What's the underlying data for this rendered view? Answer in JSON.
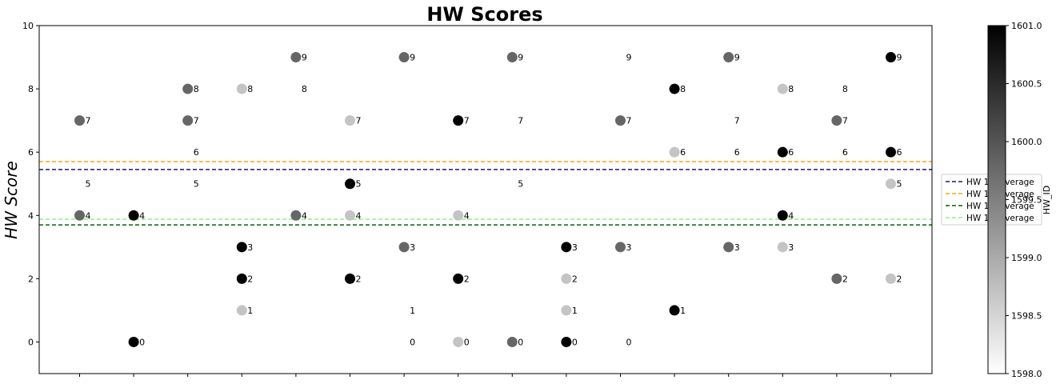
{
  "chart_data": {
    "type": "scatter",
    "title": "HW Scores",
    "xlabel": "",
    "ylabel": "HW Score",
    "ylim": [
      -1,
      10
    ],
    "yticks": [
      0,
      2,
      4,
      6,
      8,
      10
    ],
    "xticks_count": 16,
    "x_tick_labels_visible": false,
    "grid": false,
    "colorbar": {
      "label": "HW_ID",
      "range": [
        1598.0,
        1601.0
      ],
      "ticks": [
        "1598.0",
        "1598.5",
        "1599.0",
        "1599.5",
        "1600.0",
        "1600.5",
        "1601.0"
      ],
      "colormap": "greys"
    },
    "legend": {
      "placement": "right",
      "entries": [
        {
          "label": "HW 1... Average",
          "color": "#191970",
          "style": "dashed",
          "y": 5.45
        },
        {
          "label": "HW 1... Average",
          "color": "#ffa500",
          "style": "dashed",
          "y": 5.7
        },
        {
          "label": "HW 1... Average",
          "color": "#006400",
          "style": "dashed",
          "y": 3.7
        },
        {
          "label": "HW 1... Average",
          "color": "#90ee90",
          "style": "dashed",
          "y": 3.88
        }
      ]
    },
    "point_label_note": "each point is annotated with its score value",
    "series": [
      {
        "hw_id": 1601.0,
        "color": "#000000",
        "points": [
          [
            1,
            4
          ],
          [
            1,
            0
          ],
          [
            3,
            3
          ],
          [
            3,
            2
          ],
          [
            5,
            5
          ],
          [
            5,
            2
          ],
          [
            7,
            7
          ],
          [
            7,
            2
          ],
          [
            9,
            3
          ],
          [
            9,
            0
          ],
          [
            11,
            8
          ],
          [
            11,
            1
          ],
          [
            13,
            6
          ],
          [
            13,
            4
          ],
          [
            15,
            9
          ],
          [
            15,
            6
          ]
        ]
      },
      {
        "hw_id": 1600.0,
        "color": "#666666",
        "points": [
          [
            0,
            7
          ],
          [
            0,
            4
          ],
          [
            2,
            8
          ],
          [
            2,
            7
          ],
          [
            4,
            9
          ],
          [
            4,
            4
          ],
          [
            6,
            9
          ],
          [
            6,
            3
          ],
          [
            8,
            9
          ],
          [
            8,
            0
          ],
          [
            10,
            7
          ],
          [
            10,
            3
          ],
          [
            12,
            9
          ],
          [
            12,
            3
          ],
          [
            14,
            7
          ],
          [
            14,
            2
          ]
        ]
      },
      {
        "hw_id": 1599.0,
        "color": "#c4c4c4",
        "points": [
          [
            3,
            8
          ],
          [
            3,
            1
          ],
          [
            5,
            7
          ],
          [
            5,
            4
          ],
          [
            7,
            4
          ],
          [
            7,
            0
          ],
          [
            9,
            2
          ],
          [
            9,
            1
          ],
          [
            11,
            6
          ],
          [
            13,
            8
          ],
          [
            13,
            3
          ],
          [
            15,
            5
          ],
          [
            15,
            2
          ]
        ]
      }
    ],
    "labels_without_markers": [
      [
        0,
        5
      ],
      [
        2,
        6
      ],
      [
        2,
        5
      ],
      [
        4,
        8
      ],
      [
        6,
        1
      ],
      [
        6,
        0
      ],
      [
        8,
        7
      ],
      [
        8,
        5
      ],
      [
        10,
        9
      ],
      [
        10,
        0
      ],
      [
        12,
        7
      ],
      [
        12,
        6
      ],
      [
        14,
        8
      ],
      [
        14,
        6
      ]
    ]
  }
}
